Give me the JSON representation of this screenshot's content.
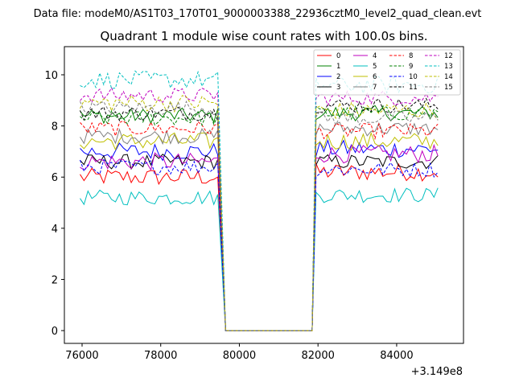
{
  "figure": {
    "suptitle": "Data file: modeM0/AS1T03_170T01_9000003388_22936cztM0_level2_quad_clean.evt"
  },
  "chart_data": {
    "type": "line",
    "title": "Quadrant 1 module wise count rates with 100.0s bins.",
    "xlabel": "",
    "ylabel": "",
    "offset_label": "+3.149e8",
    "xlim": [
      75550,
      85700
    ],
    "ylim": [
      -0.5,
      11.1
    ],
    "xticks": [
      76000,
      78000,
      80000,
      82000,
      84000
    ],
    "xtick_labels": [
      "76000",
      "78000",
      "80000",
      "82000",
      "84000"
    ],
    "yticks": [
      0,
      2,
      4,
      6,
      8,
      10
    ],
    "ytick_labels": [
      "0",
      "2",
      "4",
      "6",
      "8",
      "10"
    ],
    "grid": false,
    "legend_position": "top-right",
    "legend_columns": 4,
    "segments": {
      "first": {
        "start": 75950,
        "end": 79450,
        "step": 100
      },
      "dip_start": 79650,
      "dip_end": 81850,
      "second": {
        "start": 81950,
        "end": 85050,
        "step": 100
      }
    },
    "series": [
      {
        "name": "0",
        "color": "#ff0000",
        "dash": "solid",
        "level1": 6.0,
        "level2": 6.2,
        "noise": 0.35
      },
      {
        "name": "1",
        "color": "#008000",
        "dash": "solid",
        "level1": 8.4,
        "level2": 8.5,
        "noise": 0.3
      },
      {
        "name": "2",
        "color": "#0000ff",
        "dash": "solid",
        "level1": 7.0,
        "level2": 7.1,
        "noise": 0.35
      },
      {
        "name": "3",
        "color": "#000000",
        "dash": "solid",
        "level1": 6.6,
        "level2": 6.6,
        "noise": 0.3
      },
      {
        "name": "4",
        "color": "#bf00bf",
        "dash": "solid",
        "level1": 6.6,
        "level2": 6.9,
        "noise": 0.35
      },
      {
        "name": "5",
        "color": "#00bfbf",
        "dash": "solid",
        "level1": 5.2,
        "level2": 5.3,
        "noise": 0.3
      },
      {
        "name": "6",
        "color": "#bfbf00",
        "dash": "solid",
        "level1": 7.4,
        "level2": 7.4,
        "noise": 0.35
      },
      {
        "name": "7",
        "color": "#808080",
        "dash": "solid",
        "level1": 7.6,
        "level2": 7.9,
        "noise": 0.3
      },
      {
        "name": "8",
        "color": "#ff0000",
        "dash": "dashed",
        "level1": 7.9,
        "level2": 7.8,
        "noise": 0.3
      },
      {
        "name": "9",
        "color": "#008000",
        "dash": "dashed",
        "level1": 8.3,
        "level2": 8.5,
        "noise": 0.3
      },
      {
        "name": "10",
        "color": "#0000ff",
        "dash": "dashed",
        "level1": 6.4,
        "level2": 6.3,
        "noise": 0.3
      },
      {
        "name": "11",
        "color": "#000000",
        "dash": "dashed",
        "level1": 8.5,
        "level2": 8.8,
        "noise": 0.3
      },
      {
        "name": "12",
        "color": "#bf00bf",
        "dash": "dashed",
        "level1": 9.2,
        "level2": 9.1,
        "noise": 0.3
      },
      {
        "name": "13",
        "color": "#00bfbf",
        "dash": "dashed",
        "level1": 9.8,
        "level2": 9.6,
        "noise": 0.35
      },
      {
        "name": "14",
        "color": "#bfbf00",
        "dash": "dashed",
        "level1": 8.9,
        "level2": 8.6,
        "noise": 0.35
      },
      {
        "name": "15",
        "color": "#808080",
        "dash": "dashed",
        "level1": 8.7,
        "level2": 8.3,
        "noise": 0.3
      }
    ]
  }
}
